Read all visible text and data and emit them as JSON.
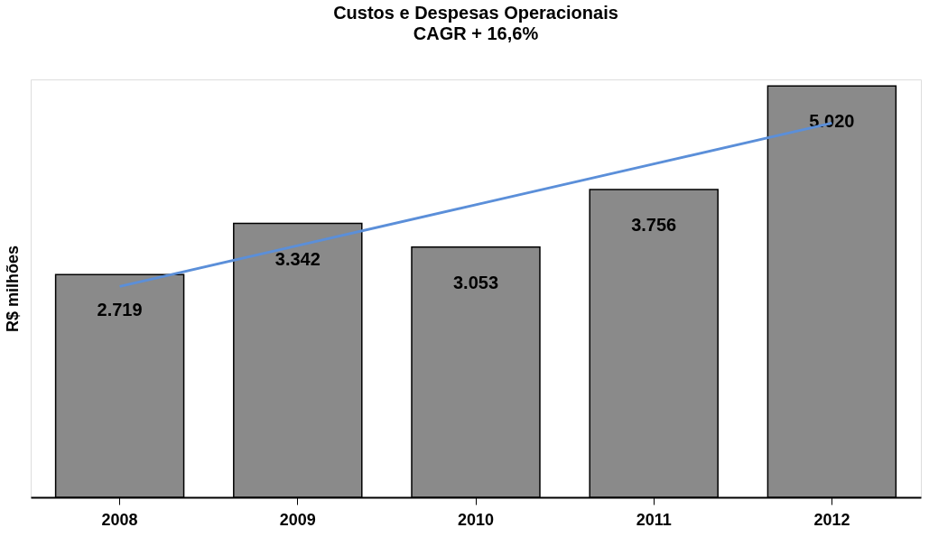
{
  "chart_data": {
    "type": "bar",
    "title": "Custos e Despesas Operacionais",
    "subtitle": "CAGR   + 16,6%",
    "ylabel": "R$ milhões",
    "categories": [
      "2008",
      "2009",
      "2010",
      "2011",
      "2012"
    ],
    "series": [
      {
        "color": "#8a8a8a",
        "values": [
          2719,
          3342,
          3053,
          3756,
          5020
        ],
        "value_labels": [
          "2.719",
          "3.342",
          "3.053",
          "3.756",
          "5.020"
        ]
      },
      {
        "type": "line",
        "color": "#5b8fd9",
        "values": [
          2573,
          3072,
          3570,
          4069,
          4567
        ]
      }
    ],
    "ylim": [
      0,
      5100
    ],
    "tick_labels": "x",
    "grid": false
  }
}
